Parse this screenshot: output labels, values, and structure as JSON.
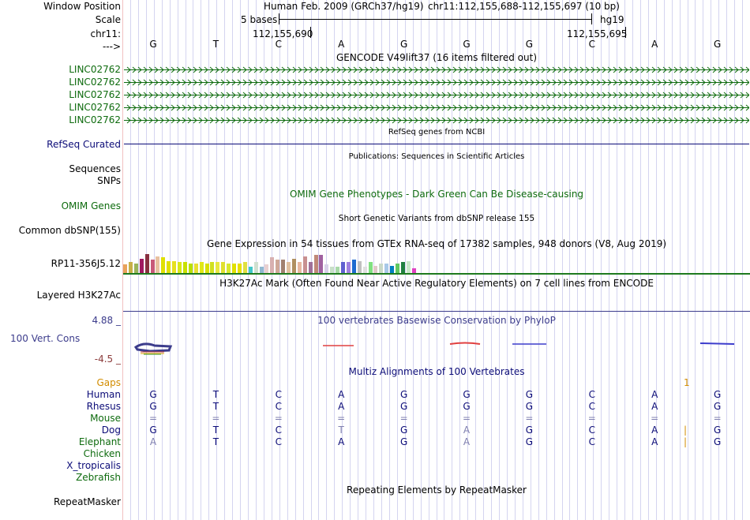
{
  "header": {
    "window_position_label": "Window Position",
    "assembly": "Human Feb. 2009 (GRCh37/hg19)",
    "position": "chr11:112,155,688-112,155,697 (10 bp)",
    "scale_label": "Scale",
    "scale_text": "5 bases",
    "scale_db": "hg19",
    "chrom_label": "chr11:",
    "coord_1": "112,155,690",
    "coord_2": "112,155,695",
    "arrow_label": "--->"
  },
  "bases": [
    "G",
    "T",
    "C",
    "A",
    "G",
    "G",
    "G",
    "C",
    "A",
    "G"
  ],
  "tracks": {
    "gencode_title": "GENCODE V49lift37 (16 items filtered out)",
    "gencode_items": [
      "LINC02762",
      "LINC02762",
      "LINC02762",
      "LINC02762",
      "LINC02762"
    ],
    "refseq_title": "RefSeq genes from NCBI",
    "refseq_label": "RefSeq Curated",
    "pubs_title": "Publications: Sequences in Scientific Articles",
    "sequences_label": "Sequences",
    "snps_label": "SNPs",
    "omim_title": "OMIM Gene Phenotypes - Dark Green Can Be Disease-causing",
    "omim_label": "OMIM Genes",
    "dbsnp_title": "Short Genetic Variants from dbSNP release 155",
    "dbsnp_label": "Common dbSNP(155)",
    "gtex_title": "Gene Expression in 54 tissues from GTEx RNA-seq of 17382 samples, 948 donors (V8, Aug 2019)",
    "gtex_label": "RP11-356J5.12",
    "h3k27_title": "H3K27Ac Mark (Often Found Near Active Regulatory Elements) on 7 cell lines from ENCODE",
    "h3k27_label": "Layered H3K27Ac",
    "cons_max": "4.88 _",
    "cons_title": "100 vertebrates Basewise Conservation by PhyloP",
    "cons_label": "100 Vert. Cons",
    "cons_min": "-4.5 _",
    "multiz_title": "Multiz Alignments of 100 Vertebrates",
    "gaps_label": "Gaps",
    "gap_count": "1",
    "repeat_title": "Repeating Elements by RepeatMasker",
    "repeat_label": "RepeatMasker"
  },
  "alignments": [
    {
      "species": "Human",
      "bases": [
        "G",
        "T",
        "C",
        "A",
        "G",
        "G",
        "G",
        "C",
        "A",
        "G"
      ],
      "extra": ""
    },
    {
      "species": "Rhesus",
      "bases": [
        "G",
        "T",
        "C",
        "A",
        "G",
        "G",
        "G",
        "C",
        "A",
        "G"
      ],
      "extra": ""
    },
    {
      "species": "Mouse",
      "bases": [
        "=",
        "=",
        "=",
        "=",
        "=",
        "=",
        "=",
        "=",
        "=",
        "="
      ],
      "extra": ""
    },
    {
      "species": "Dog",
      "bases": [
        "G",
        "T",
        "C",
        "T",
        "G",
        "A",
        "G",
        "C",
        "A",
        "G"
      ],
      "extra": "|"
    },
    {
      "species": "Elephant",
      "bases": [
        "A",
        "T",
        "C",
        "A",
        "G",
        "A",
        "G",
        "C",
        "A",
        "G"
      ],
      "extra": "|"
    },
    {
      "species": "Chicken",
      "bases": [],
      "extra": ""
    },
    {
      "species": "X_tropicalis",
      "bases": [],
      "extra": ""
    },
    {
      "species": "Zebrafish",
      "bases": [],
      "extra": ""
    }
  ],
  "gtex_values": [
    0.35,
    0.45,
    0.4,
    0.6,
    0.8,
    0.55,
    0.7,
    0.65,
    0.5,
    0.5,
    0.45,
    0.45,
    0.4,
    0.4,
    0.45,
    0.4,
    0.45,
    0.45,
    0.45,
    0.4,
    0.4,
    0.4,
    0.45,
    0.25,
    0.45,
    0.25,
    0.35,
    0.65,
    0.55,
    0.55,
    0.45,
    0.6,
    0.45,
    0.7,
    0.45,
    0.75,
    0.75,
    0.35,
    0.25,
    0.25,
    0.45,
    0.45,
    0.55,
    0.5,
    0.25,
    0.45,
    0.3,
    0.4,
    0.4,
    0.3,
    0.4,
    0.45,
    0.5,
    0.2
  ],
  "colors": {
    "gene_green": "#0e6b0e",
    "refseq_blue": "#0c0c78",
    "cons_blue": "#3c3c8c",
    "cons_red": "#8c3c3c",
    "gaps_orange": "#d28c00",
    "gtex_green": "#1e7a1e",
    "gtex_bar_colors": [
      "#e8a35a",
      "#c8b048",
      "#9ab45a",
      "#a01860",
      "#883040",
      "#c85878",
      "#e8c0a0",
      "#e0e000",
      "#e0e000",
      "#e6e020",
      "#d8e818",
      "#c8e000",
      "#b8e000",
      "#e8e030",
      "#e0e818",
      "#d8e000",
      "#d0e020",
      "#e8e840",
      "#e0e030",
      "#d8e830",
      "#e0e000",
      "#e8e000",
      "#e0e040",
      "#40c8c8",
      "#d0e0d0",
      "#90b8d0",
      "#e8d0d0",
      "#d8b0b0",
      "#d0a898",
      "#a08070",
      "#e0c0a0",
      "#b09060",
      "#e8b8a0",
      "#c89090",
      "#a0709a",
      "#c08878",
      "#a060a0",
      "#d8d0e8",
      "#c8e0c8",
      "#a8d8a8",
      "#6060d0",
      "#a080e0",
      "#1e6bd0",
      "#c0c0c0",
      "#e0e0e0",
      "#80e080",
      "#e0c8c8",
      "#c8d8c8",
      "#a8c8e8",
      "#0080c0",
      "#60c860",
      "#208040",
      "#c8e8c8",
      "#e040c0"
    ]
  }
}
